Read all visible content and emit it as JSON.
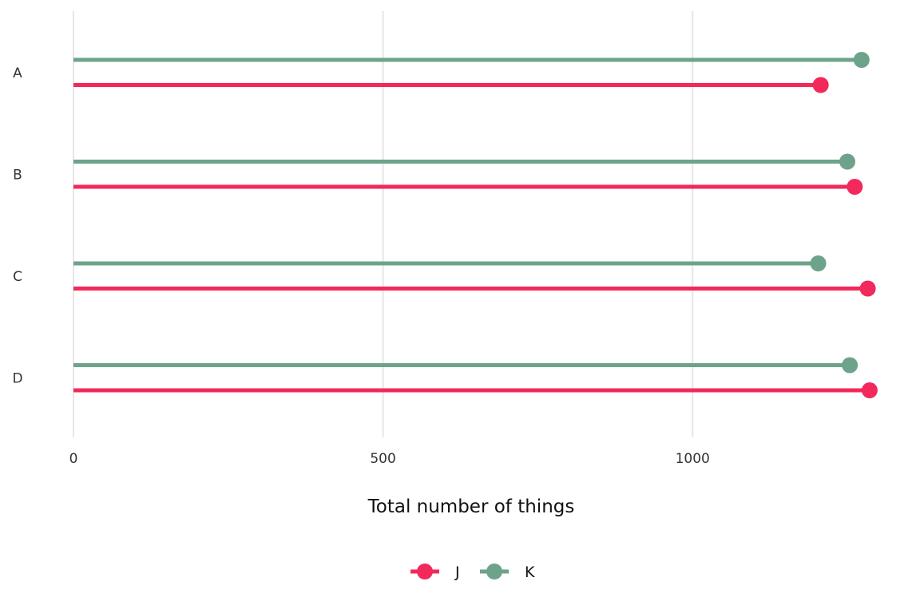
{
  "chart_data": {
    "type": "lollipop",
    "orientation": "horizontal",
    "categories": [
      "A",
      "B",
      "C",
      "D"
    ],
    "series": [
      {
        "name": "J",
        "color": "#f2295b",
        "values": [
          1207,
          1262,
          1283,
          1286
        ]
      },
      {
        "name": "K",
        "color": "#6da38a",
        "values": [
          1273,
          1250,
          1203,
          1254
        ]
      }
    ],
    "xlabel": "Total number of things",
    "ylabel": "",
    "xlim": [
      0,
      1300
    ],
    "x_ticks": [
      0,
      500,
      1000
    ],
    "x_tick_labels": [
      "0",
      "500",
      "1000"
    ],
    "grid": "vertical major only",
    "legend_position": "bottom"
  }
}
